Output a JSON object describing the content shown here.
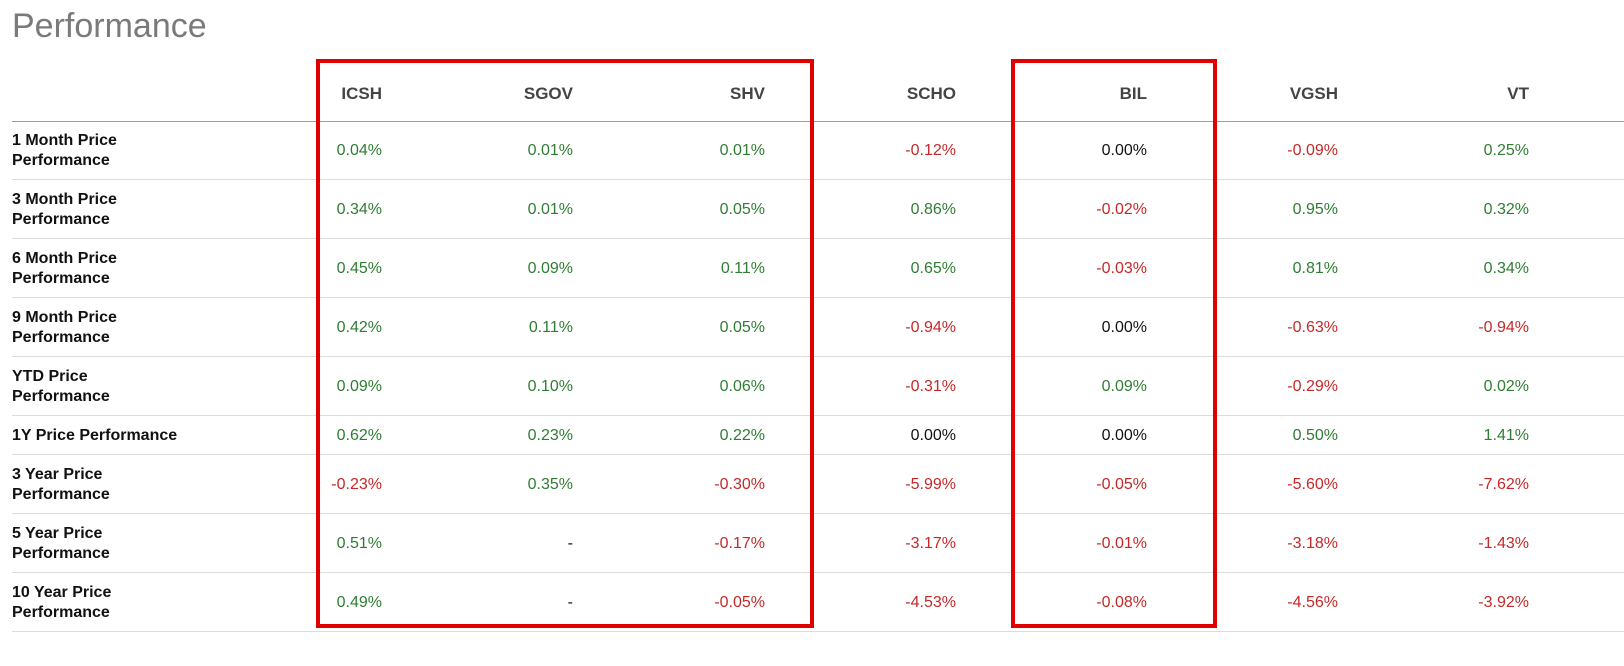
{
  "page": {
    "title": "Performance"
  },
  "table": {
    "columns": [
      "ICSH",
      "SGOV",
      "SHV",
      "SCHO",
      "BIL",
      "VGSH",
      "VT"
    ],
    "rows": [
      {
        "label": [
          "1 Month Price",
          "Performance"
        ],
        "values": [
          "0.04%",
          "0.01%",
          "0.01%",
          "-0.12%",
          "0.00%",
          "-0.09%",
          "0.25%"
        ]
      },
      {
        "label": [
          "3 Month Price",
          "Performance"
        ],
        "values": [
          "0.34%",
          "0.01%",
          "0.05%",
          "0.86%",
          "-0.02%",
          "0.95%",
          "0.32%"
        ]
      },
      {
        "label": [
          "6 Month Price",
          "Performance"
        ],
        "values": [
          "0.45%",
          "0.09%",
          "0.11%",
          "0.65%",
          "-0.03%",
          "0.81%",
          "0.34%"
        ]
      },
      {
        "label": [
          "9 Month Price",
          "Performance"
        ],
        "values": [
          "0.42%",
          "0.11%",
          "0.05%",
          "-0.94%",
          "0.00%",
          "-0.63%",
          "-0.94%"
        ]
      },
      {
        "label": [
          "YTD Price",
          "Performance"
        ],
        "values": [
          "0.09%",
          "0.10%",
          "0.06%",
          "-0.31%",
          "0.09%",
          "-0.29%",
          "0.02%"
        ]
      },
      {
        "label": [
          "1Y Price Performance"
        ],
        "values": [
          "0.62%",
          "0.23%",
          "0.22%",
          "0.00%",
          "0.00%",
          "0.50%",
          "1.41%"
        ]
      },
      {
        "label": [
          "3 Year Price",
          "Performance"
        ],
        "values": [
          "-0.23%",
          "0.35%",
          "-0.30%",
          "-5.99%",
          "-0.05%",
          "-5.60%",
          "-7.62%"
        ]
      },
      {
        "label": [
          "5 Year Price",
          "Performance"
        ],
        "values": [
          "0.51%",
          "-",
          "-0.17%",
          "-3.17%",
          "-0.01%",
          "-3.18%",
          "-1.43%"
        ]
      },
      {
        "label": [
          "10 Year Price",
          "Performance"
        ],
        "values": [
          "0.49%",
          "-",
          "-0.05%",
          "-4.53%",
          "-0.08%",
          "-4.56%",
          "-3.92%"
        ]
      }
    ]
  },
  "colors": {
    "positive": "#2e7d32",
    "negative": "#c62828",
    "neutral": "#111111",
    "highlight": "#e00000"
  }
}
